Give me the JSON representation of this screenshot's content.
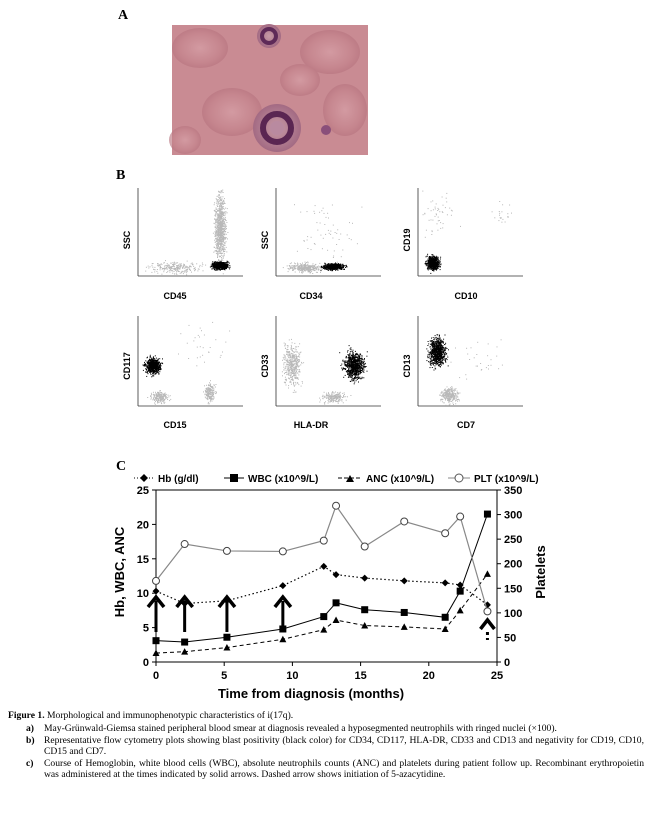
{
  "panels": {
    "a": "A",
    "b": "B",
    "c": "C"
  },
  "smear": {
    "background": "#c98b93",
    "cell_color": "#7a3f6a"
  },
  "flow": {
    "plots": [
      {
        "ylabel": "SSC",
        "xlabel": "CD45"
      },
      {
        "ylabel": "SSC",
        "xlabel": "CD34"
      },
      {
        "ylabel": "CD19",
        "xlabel": "CD10"
      },
      {
        "ylabel": "CD117",
        "xlabel": "CD15"
      },
      {
        "ylabel": "CD33",
        "xlabel": "HLA-DR"
      },
      {
        "ylabel": "CD13",
        "xlabel": "CD7"
      }
    ],
    "blast_color": "#000000",
    "other_color": "#b8b8b8"
  },
  "chart_data": {
    "type": "line",
    "title": "",
    "xlabel": "Time from diagnosis (months)",
    "ylabel_left": "Hb, WBC, ANC",
    "ylabel_right": "Platelets",
    "xlim": [
      0,
      25
    ],
    "ylim_left": [
      0,
      25
    ],
    "ylim_right": [
      0,
      350
    ],
    "x_ticks": [
      0,
      5,
      10,
      15,
      20,
      25
    ],
    "y_ticks_left": [
      0,
      5,
      10,
      15,
      20,
      25
    ],
    "y_ticks_right": [
      0,
      50,
      100,
      150,
      200,
      250,
      300,
      350
    ],
    "series": [
      {
        "name": "Hb (g/dl)",
        "axis": "left",
        "marker": "diamond",
        "line": "dotted",
        "x": [
          0,
          2.1,
          5.2,
          9.3,
          12.3,
          13.2,
          15.3,
          18.2,
          21.2,
          22.3,
          24.3
        ],
        "y": [
          10.3,
          8.5,
          8.9,
          11.1,
          13.9,
          12.7,
          12.2,
          11.8,
          11.5,
          11.2,
          8.3
        ]
      },
      {
        "name": "WBC (x10^9/L)",
        "axis": "left",
        "marker": "square",
        "line": "solid",
        "x": [
          0,
          2.1,
          5.2,
          9.3,
          12.3,
          13.2,
          15.3,
          18.2,
          21.2,
          22.3,
          24.3
        ],
        "y": [
          3.1,
          2.9,
          3.6,
          4.8,
          6.6,
          8.6,
          7.6,
          7.2,
          6.5,
          10.3,
          21.5
        ]
      },
      {
        "name": "ANC (x10^9/L)",
        "axis": "left",
        "marker": "triangle",
        "line": "dashed",
        "x": [
          0,
          2.1,
          5.2,
          9.3,
          12.3,
          13.2,
          15.3,
          18.2,
          21.2,
          22.3,
          24.3
        ],
        "y": [
          1.3,
          1.5,
          2.1,
          3.3,
          4.7,
          6.1,
          5.3,
          5.1,
          4.8,
          7.5,
          12.8
        ]
      },
      {
        "name": "PLT (x10^9/L)",
        "axis": "right",
        "marker": "circle-open",
        "line": "solid-gray",
        "x": [
          0,
          2.1,
          5.2,
          9.3,
          12.3,
          13.2,
          15.3,
          18.2,
          21.2,
          22.3,
          24.3
        ],
        "y": [
          165,
          240,
          226,
          225,
          247,
          318,
          235,
          286,
          262,
          296,
          103
        ]
      }
    ],
    "epo_arrows_x": [
      0,
      2.1,
      5.2,
      9.3
    ],
    "azacytidine_arrow_x": 24.3,
    "legend_position": "top"
  },
  "caption": {
    "title_bold": "Figure 1.",
    "title_text": " Morphological and immunophenotypic characteristics  of i(17q).",
    "items": [
      {
        "label": "a)",
        "text": "May-Grünwald-Giemsa  stained  peripheral  blood  smear  at  diagnosis  revealed  a  hyposegmented  neutrophils  with  ringed  nuclei (×100)."
      },
      {
        "label": "b)",
        "text": "Representative flow cytometry plots showing blast positivity (black color) for CD34, CD117, HLA-DR, CD33 and CD13 and negativity for CD19, CD10, CD15 and CD7."
      },
      {
        "label": "c)",
        "text": "Course of Hemoglobin, white blood cells (WBC), absolute neutrophils counts (ANC) and platelets during patient follow up. Recombinant erythropoietin was administered at the times indicated by solid arrows. Dashed arrow shows initiation of 5-azacytidine."
      }
    ]
  }
}
